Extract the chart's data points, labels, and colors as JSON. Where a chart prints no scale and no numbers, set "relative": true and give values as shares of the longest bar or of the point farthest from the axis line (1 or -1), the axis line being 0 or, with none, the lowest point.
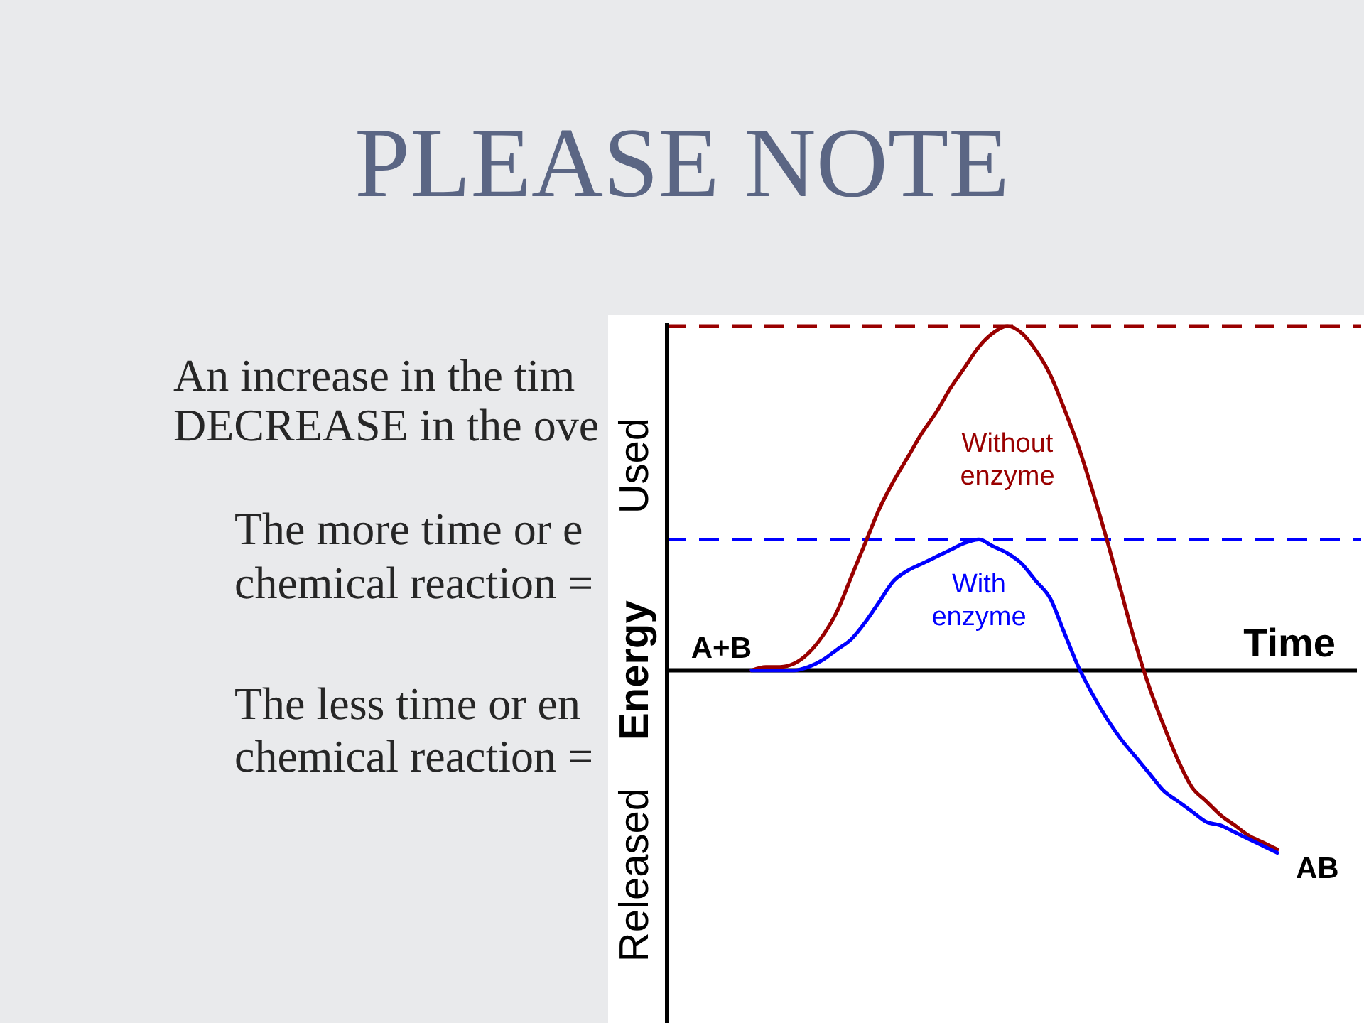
{
  "chart_data": {
    "type": "line",
    "title": "PLEASE NOTE",
    "xlabel": "Time",
    "ylabel": "Released Energy Used",
    "relative": true,
    "categories": [
      null,
      null,
      null,
      null,
      null,
      null,
      null,
      null,
      null,
      null,
      null,
      null,
      null,
      null,
      null,
      null,
      null,
      null,
      null,
      null,
      null,
      null,
      null,
      null,
      null,
      null,
      null,
      null,
      null,
      null,
      null,
      null,
      null,
      null,
      null,
      null,
      null,
      null,
      null,
      null,
      null,
      null,
      null,
      null,
      null,
      null,
      null,
      null,
      null
    ],
    "series": [
      {
        "name": "Without enzyme",
        "color": "#990000",
        "values": [
          null,
          null,
          null,
          null,
          null,
          null,
          0,
          0.01,
          0.01,
          0.02,
          0.05,
          0.1,
          0.17,
          0.27,
          0.37,
          0.47,
          0.55,
          0.62,
          0.69,
          0.75,
          0.82,
          0.88,
          0.94,
          0.98,
          1.0,
          0.98,
          0.93,
          0.86,
          0.76,
          0.65,
          0.52,
          0.38,
          0.23,
          0.08,
          -0.05,
          -0.16,
          -0.26,
          -0.34,
          -0.38,
          -0.42,
          -0.45,
          -0.48,
          -0.5,
          -0.52,
          null,
          null,
          null,
          null,
          null
        ]
      },
      {
        "name": "With enzyme",
        "color": "#0000ff",
        "values": [
          null,
          null,
          null,
          null,
          null,
          null,
          0,
          0.0,
          0.0,
          0.0,
          0.01,
          0.03,
          0.06,
          0.09,
          0.14,
          0.2,
          0.26,
          0.29,
          0.31,
          0.33,
          0.35,
          0.37,
          0.38,
          0.36,
          0.34,
          0.31,
          0.26,
          0.21,
          0.11,
          0.01,
          -0.07,
          -0.14,
          -0.2,
          -0.25,
          -0.3,
          -0.35,
          -0.38,
          -0.41,
          -0.44,
          -0.45,
          -0.47,
          -0.49,
          -0.51,
          -0.53,
          null,
          null,
          null,
          null,
          null
        ]
      }
    ],
    "ref_lines": [
      {
        "axis": "y",
        "value": 1.0,
        "color": "#990000",
        "line_style": "dashed"
      },
      {
        "axis": "y",
        "value": 0.38,
        "color": "#0000ff",
        "line_style": "dashed"
      }
    ],
    "annotations": [
      "An increase in the tim",
      "DECREASE in the ove",
      "The more time or e",
      "chemical reaction =",
      "The less time or en",
      "chemical reaction =",
      "A+B",
      "AB"
    ]
  }
}
